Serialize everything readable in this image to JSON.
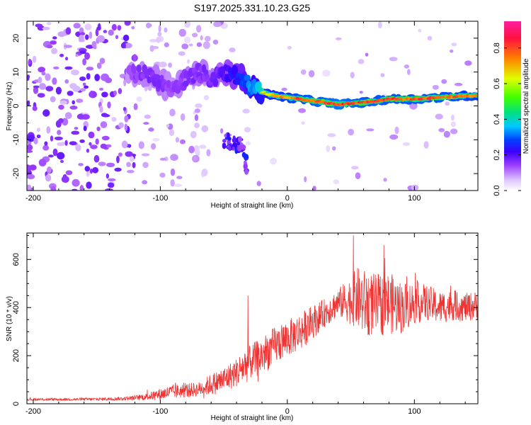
{
  "title": "S197.2025.331.10.23.G25",
  "chart_data": [
    {
      "type": "heatmap",
      "title": "S197.2025.331.10.23.G25",
      "xlabel": "Height of straight line (km)",
      "ylabel": "Frequency (Hz)",
      "xlim": [
        -205,
        150
      ],
      "ylim": [
        -25,
        25
      ],
      "xticks": [
        -200,
        -100,
        0,
        100
      ],
      "yticks": [
        -20,
        -10,
        0,
        10,
        20
      ],
      "colorbar": {
        "label": "Normalized spectral amplitude",
        "range": [
          0,
          0.95
        ],
        "ticks": [
          0.0,
          0.2,
          0.4,
          0.6,
          0.8
        ],
        "colors": [
          "#ffffff",
          "#e0c8ff",
          "#9a3cff",
          "#3b00ff",
          "#0040ff",
          "#00c8ff",
          "#00e080",
          "#40ff00",
          "#e0ff00",
          "#ff8000",
          "#ff1040",
          "#ff20a0"
        ]
      },
      "ridge": {
        "x": [
          -125,
          -110,
          -100,
          -90,
          -80,
          -70,
          -60,
          -50,
          -40,
          -30,
          -20,
          -10,
          0,
          10,
          20,
          40,
          60,
          80,
          100,
          120,
          140,
          150
        ],
        "freq": [
          10,
          9,
          7,
          5,
          8,
          10,
          8,
          10,
          9,
          6,
          4,
          3,
          2.5,
          2,
          1.5,
          0.5,
          1,
          2,
          2,
          2.5,
          3,
          3
        ],
        "amplitude": [
          0.25,
          0.3,
          0.3,
          0.25,
          0.3,
          0.3,
          0.3,
          0.35,
          0.45,
          0.6,
          0.7,
          0.75,
          0.8,
          0.85,
          0.85,
          0.9,
          0.85,
          0.85,
          0.85,
          0.85,
          0.8,
          0.8
        ]
      },
      "secondary_feature": {
        "x": [
          -50,
          -35,
          -32
        ],
        "freq": [
          -10,
          -12,
          -18
        ]
      }
    },
    {
      "type": "line",
      "xlabel": "Height of straight line (km)",
      "ylabel": "SNR (10 * v/v)",
      "xlim": [
        -205,
        150
      ],
      "ylim": [
        0,
        710
      ],
      "xticks": [
        -200,
        -100,
        0,
        100
      ],
      "yticks": [
        0,
        200,
        400,
        600
      ],
      "series": [
        {
          "name": "SNR",
          "color": "#ee3333",
          "x": [
            -205,
            -180,
            -150,
            -125,
            -110,
            -100,
            -90,
            -80,
            -70,
            -60,
            -50,
            -40,
            -33,
            -30,
            -20,
            -10,
            0,
            10,
            20,
            30,
            40,
            50,
            55,
            60,
            70,
            80,
            90,
            100,
            110,
            120,
            130,
            140,
            150
          ],
          "mean": [
            18,
            18,
            19,
            22,
            30,
            40,
            50,
            55,
            60,
            80,
            100,
            130,
            160,
            170,
            200,
            240,
            270,
            300,
            340,
            380,
            420,
            430,
            440,
            420,
            410,
            420,
            400,
            420,
            420,
            400,
            410,
            400,
            410
          ],
          "spread": [
            5,
            5,
            6,
            8,
            15,
            25,
            30,
            30,
            30,
            45,
            55,
            60,
            80,
            70,
            80,
            80,
            75,
            80,
            70,
            60,
            60,
            100,
            130,
            140,
            130,
            130,
            110,
            90,
            75,
            70,
            65,
            60,
            60
          ]
        }
      ],
      "spikes": [
        {
          "x": -31,
          "value": 450
        },
        {
          "x": 52,
          "value": 700
        },
        {
          "x": 76,
          "value": 660
        }
      ]
    }
  ]
}
